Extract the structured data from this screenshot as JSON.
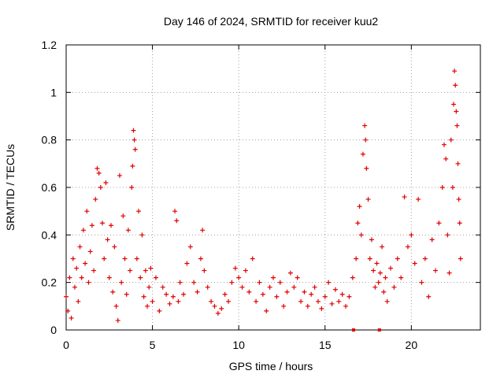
{
  "chart_data": {
    "type": "scatter",
    "title": "Day 146 of 2024, SRMTID for receiver kuu2",
    "xlabel": "GPS time / hours",
    "ylabel": "SRMTID / TECUs",
    "xlim": [
      0,
      24
    ],
    "ylim": [
      0,
      1.2
    ],
    "x_ticks": [
      "0",
      "5",
      "10",
      "15",
      "20"
    ],
    "y_ticks": [
      "0",
      "0.2",
      "0.4",
      "0.6",
      "0.8",
      "1",
      "1.2"
    ],
    "grid": true,
    "marker_color": "#e00000",
    "series": [
      {
        "name": "kuu2",
        "points": [
          [
            0.0,
            0.14
          ],
          [
            0.1,
            0.08
          ],
          [
            0.2,
            0.22
          ],
          [
            0.3,
            0.05
          ],
          [
            0.4,
            0.3
          ],
          [
            0.5,
            0.18
          ],
          [
            0.6,
            0.26
          ],
          [
            0.7,
            0.12
          ],
          [
            0.8,
            0.35
          ],
          [
            0.9,
            0.22
          ],
          [
            1.0,
            0.42
          ],
          [
            1.1,
            0.28
          ],
          [
            1.2,
            0.5
          ],
          [
            1.3,
            0.2
          ],
          [
            1.4,
            0.33
          ],
          [
            1.5,
            0.44
          ],
          [
            1.6,
            0.25
          ],
          [
            1.7,
            0.55
          ],
          [
            1.8,
            0.68
          ],
          [
            1.9,
            0.66
          ],
          [
            2.0,
            0.6
          ],
          [
            2.1,
            0.45
          ],
          [
            2.2,
            0.3
          ],
          [
            2.3,
            0.62
          ],
          [
            2.4,
            0.38
          ],
          [
            2.5,
            0.22
          ],
          [
            2.6,
            0.44
          ],
          [
            2.7,
            0.16
          ],
          [
            2.8,
            0.35
          ],
          [
            2.9,
            0.1
          ],
          [
            3.0,
            0.04
          ],
          [
            3.1,
            0.65
          ],
          [
            3.2,
            0.2
          ],
          [
            3.3,
            0.48
          ],
          [
            3.4,
            0.3
          ],
          [
            3.5,
            0.15
          ],
          [
            3.6,
            0.42
          ],
          [
            3.7,
            0.25
          ],
          [
            3.8,
            0.6
          ],
          [
            3.85,
            0.69
          ],
          [
            3.9,
            0.84
          ],
          [
            3.95,
            0.8
          ],
          [
            4.0,
            0.76
          ],
          [
            4.1,
            0.3
          ],
          [
            4.2,
            0.5
          ],
          [
            4.3,
            0.22
          ],
          [
            4.4,
            0.4
          ],
          [
            4.5,
            0.14
          ],
          [
            4.6,
            0.25
          ],
          [
            4.7,
            0.1
          ],
          [
            4.8,
            0.18
          ],
          [
            4.9,
            0.26
          ],
          [
            5.0,
            0.12
          ],
          [
            5.2,
            0.22
          ],
          [
            5.4,
            0.08
          ],
          [
            5.6,
            0.18
          ],
          [
            5.8,
            0.15
          ],
          [
            6.0,
            0.11
          ],
          [
            6.2,
            0.14
          ],
          [
            6.3,
            0.5
          ],
          [
            6.4,
            0.46
          ],
          [
            6.5,
            0.12
          ],
          [
            6.6,
            0.2
          ],
          [
            6.8,
            0.15
          ],
          [
            7.0,
            0.28
          ],
          [
            7.2,
            0.35
          ],
          [
            7.4,
            0.2
          ],
          [
            7.6,
            0.16
          ],
          [
            7.8,
            0.3
          ],
          [
            7.9,
            0.42
          ],
          [
            8.0,
            0.25
          ],
          [
            8.2,
            0.18
          ],
          [
            8.4,
            0.12
          ],
          [
            8.6,
            0.1
          ],
          [
            8.8,
            0.07
          ],
          [
            9.0,
            0.09
          ],
          [
            9.2,
            0.15
          ],
          [
            9.4,
            0.12
          ],
          [
            9.6,
            0.2
          ],
          [
            9.8,
            0.26
          ],
          [
            10.0,
            0.22
          ],
          [
            10.2,
            0.18
          ],
          [
            10.4,
            0.25
          ],
          [
            10.6,
            0.16
          ],
          [
            10.8,
            0.3
          ],
          [
            11.0,
            0.12
          ],
          [
            11.2,
            0.2
          ],
          [
            11.4,
            0.15
          ],
          [
            11.6,
            0.08
          ],
          [
            11.8,
            0.18
          ],
          [
            12.0,
            0.22
          ],
          [
            12.2,
            0.14
          ],
          [
            12.4,
            0.2
          ],
          [
            12.6,
            0.1
          ],
          [
            12.8,
            0.16
          ],
          [
            13.0,
            0.24
          ],
          [
            13.2,
            0.18
          ],
          [
            13.4,
            0.22
          ],
          [
            13.6,
            0.12
          ],
          [
            13.8,
            0.16
          ],
          [
            14.0,
            0.1
          ],
          [
            14.2,
            0.15
          ],
          [
            14.4,
            0.18
          ],
          [
            14.6,
            0.12
          ],
          [
            14.8,
            0.09
          ],
          [
            15.0,
            0.14
          ],
          [
            15.2,
            0.2
          ],
          [
            15.4,
            0.11
          ],
          [
            15.6,
            0.17
          ],
          [
            15.8,
            0.12
          ],
          [
            16.0,
            0.15
          ],
          [
            16.2,
            0.1
          ],
          [
            16.4,
            0.14
          ],
          [
            16.6,
            0.22
          ],
          [
            16.8,
            0.3
          ],
          [
            16.9,
            0.45
          ],
          [
            17.0,
            0.52
          ],
          [
            17.1,
            0.4
          ],
          [
            17.2,
            0.74
          ],
          [
            17.3,
            0.86
          ],
          [
            17.35,
            0.8
          ],
          [
            17.4,
            0.68
          ],
          [
            17.5,
            0.55
          ],
          [
            17.6,
            0.3
          ],
          [
            17.7,
            0.38
          ],
          [
            17.8,
            0.25
          ],
          [
            17.9,
            0.18
          ],
          [
            18.0,
            0.28
          ],
          [
            18.1,
            0.2
          ],
          [
            18.2,
            0.24
          ],
          [
            18.3,
            0.35
          ],
          [
            18.4,
            0.16
          ],
          [
            18.5,
            0.22
          ],
          [
            18.6,
            0.12
          ],
          [
            18.8,
            0.26
          ],
          [
            19.0,
            0.18
          ],
          [
            19.2,
            0.3
          ],
          [
            19.4,
            0.22
          ],
          [
            19.6,
            0.56
          ],
          [
            19.8,
            0.35
          ],
          [
            20.0,
            0.4
          ],
          [
            20.2,
            0.28
          ],
          [
            20.4,
            0.55
          ],
          [
            20.6,
            0.2
          ],
          [
            20.8,
            0.3
          ],
          [
            21.0,
            0.14
          ],
          [
            21.2,
            0.38
          ],
          [
            21.4,
            0.25
          ],
          [
            21.6,
            0.45
          ],
          [
            21.8,
            0.6
          ],
          [
            21.9,
            0.78
          ],
          [
            22.0,
            0.72
          ],
          [
            22.1,
            0.4
          ],
          [
            22.2,
            0.24
          ],
          [
            22.3,
            0.8
          ],
          [
            22.4,
            0.6
          ],
          [
            22.45,
            0.95
          ],
          [
            22.5,
            1.09
          ],
          [
            22.55,
            1.03
          ],
          [
            22.6,
            0.92
          ],
          [
            22.65,
            0.86
          ],
          [
            22.7,
            0.7
          ],
          [
            22.75,
            0.55
          ],
          [
            22.8,
            0.45
          ],
          [
            22.85,
            0.3
          ]
        ]
      }
    ],
    "baseline_markers": [
      [
        16.65,
        0.0
      ],
      [
        18.15,
        0.0
      ]
    ]
  }
}
